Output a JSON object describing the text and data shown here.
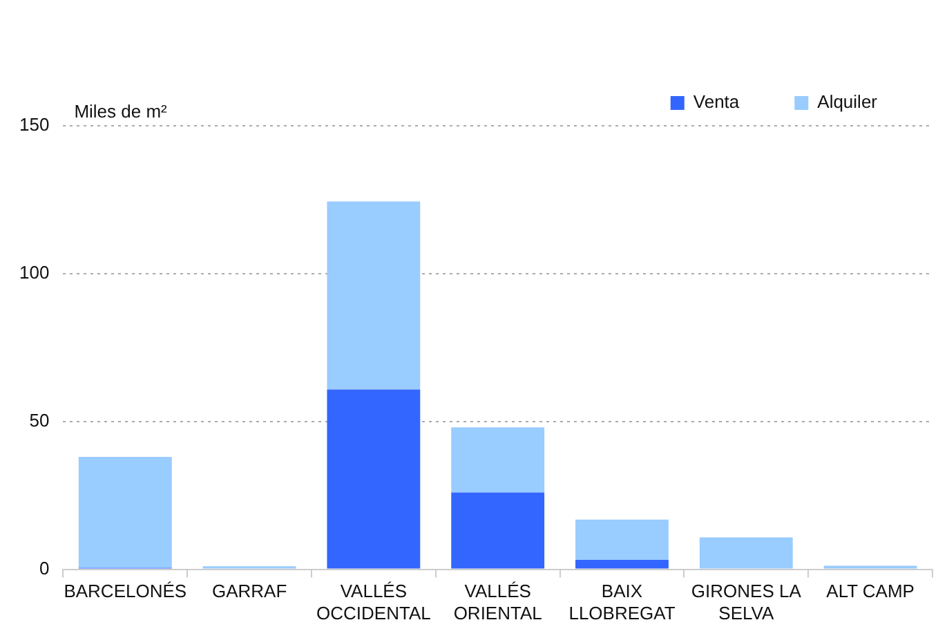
{
  "chart_data": {
    "type": "bar",
    "ylabel": "Miles de m²",
    "categories": [
      "BARCELONÉS",
      "GARRAF",
      "VALLÉS OCCIDENTAL",
      "VALLÉS ORIENTAL",
      "BAIX LLOBREGAT",
      "GIRONES LA SELVA",
      "ALT CAMP"
    ],
    "series": [
      {
        "name": "Venta",
        "color": "#3366ff",
        "values": [
          0.5,
          null,
          60.8,
          26,
          3.2,
          null,
          null
        ]
      },
      {
        "name": "Alquiler",
        "color": "#99ccff",
        "values": [
          37.5,
          1,
          63.6,
          22,
          13.6,
          10.8,
          1.2
        ]
      }
    ],
    "stacked": true,
    "ylim": [
      0,
      150
    ],
    "yticks": [
      0,
      50,
      100,
      150
    ],
    "grid": "y",
    "legend": "top right"
  }
}
